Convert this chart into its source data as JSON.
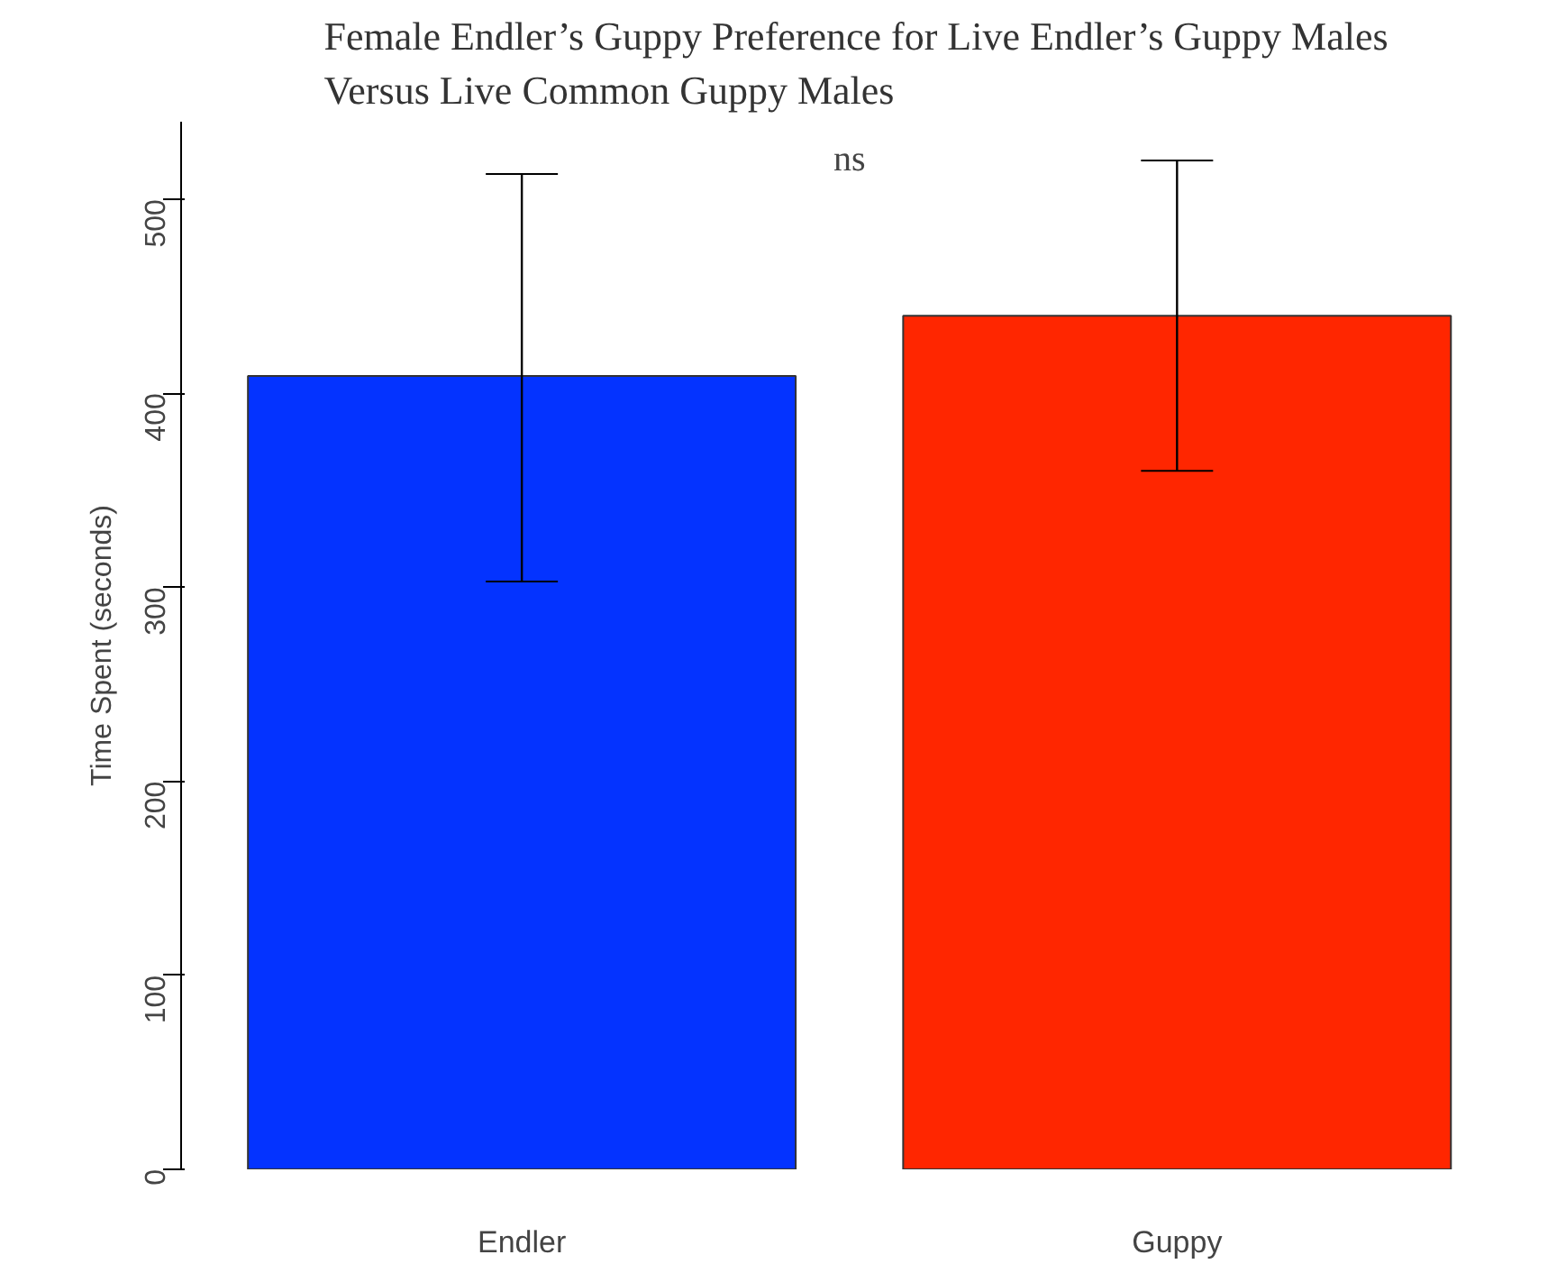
{
  "chart_data": {
    "type": "bar",
    "title": "Female Endler’s Guppy Preference for Live Endler’s Guppy Males\nVersus Live Common Guppy Males",
    "ylabel": "Time Spent (seconds)",
    "categories": [
      "Endler",
      "Guppy"
    ],
    "values": [
      409,
      440
    ],
    "colors": [
      "#0433ff",
      "#ff2600"
    ],
    "errors": [
      [
        303,
        513
      ],
      [
        360,
        520
      ]
    ],
    "ylim": [
      0,
      540
    ],
    "yticks": [
      0,
      100,
      200,
      300,
      400,
      500
    ],
    "grid": false,
    "annotations": [
      "ns"
    ]
  }
}
